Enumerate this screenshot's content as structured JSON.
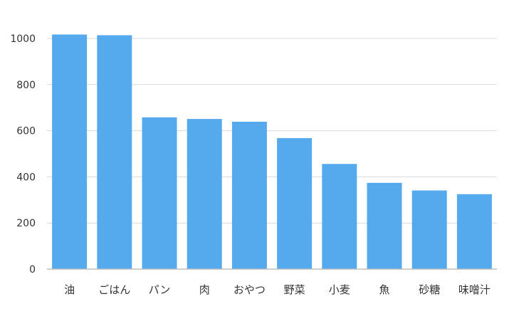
{
  "chart_data": {
    "type": "bar",
    "categories": [
      "油",
      "ごはん",
      "パン",
      "肉",
      "おやつ",
      "野菜",
      "小麦",
      "魚",
      "砂糖",
      "味噌汁"
    ],
    "values": [
      1017,
      1014,
      658,
      651,
      639,
      568,
      456,
      374,
      341,
      325
    ],
    "yticks": [
      "0",
      "200",
      "400",
      "600",
      "800",
      "1000"
    ],
    "ylim": [
      0,
      1000
    ],
    "grid": true,
    "colors": {
      "bar": "#55aaee",
      "grid": "#d9d9d9",
      "axis": "#bfbfbf"
    }
  }
}
